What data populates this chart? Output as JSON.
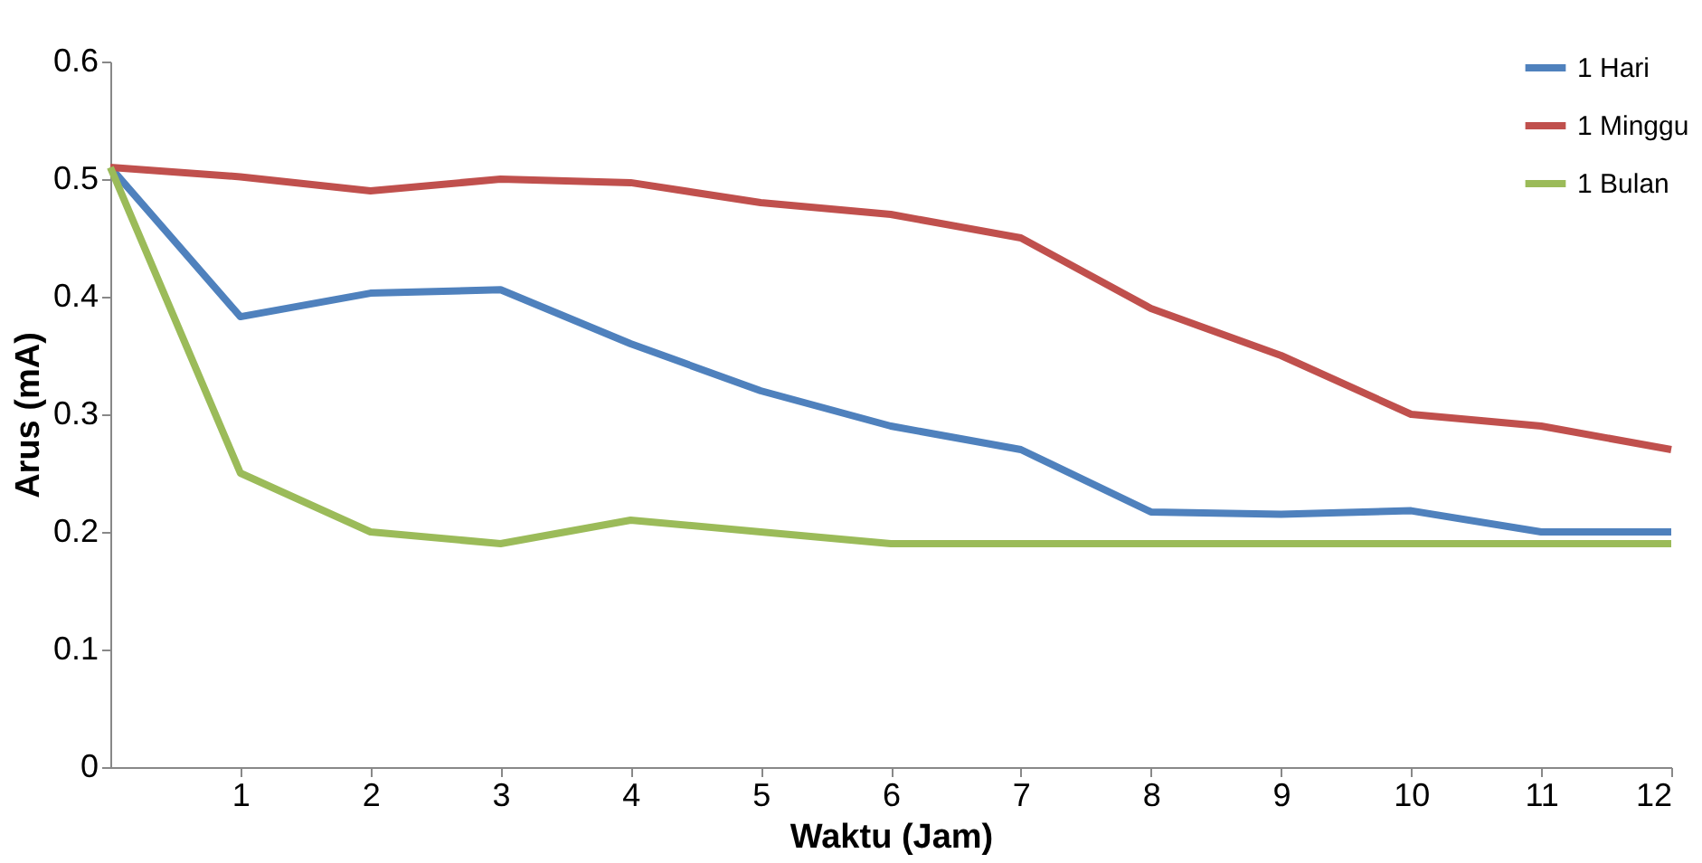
{
  "chart_data": {
    "type": "line",
    "xlabel": "Waktu (Jam)",
    "ylabel": "Arus (mA)",
    "x": [
      0,
      1,
      2,
      3,
      4,
      5,
      6,
      7,
      8,
      9,
      10,
      11,
      12
    ],
    "xlim": [
      0,
      12
    ],
    "xticks": [
      1,
      2,
      3,
      4,
      5,
      6,
      7,
      8,
      9,
      10,
      11,
      12
    ],
    "ylim": [
      0,
      0.6
    ],
    "yticks": [
      0,
      0.1,
      0.2,
      0.3,
      0.4,
      0.5,
      0.6
    ],
    "grid": false,
    "legend": "top right",
    "marker": "none",
    "line_style": "solid",
    "series": [
      {
        "name": "1 Hari",
        "color": "#4f81bd",
        "values": [
          0.51,
          0.383,
          0.403,
          0.406,
          0.36,
          0.32,
          0.29,
          0.27,
          0.217,
          0.215,
          0.218,
          0.2,
          0.2
        ]
      },
      {
        "name": "1 Minggu",
        "color": "#c0504d",
        "values": [
          0.51,
          0.502,
          0.49,
          0.5,
          0.497,
          0.48,
          0.47,
          0.45,
          0.39,
          0.35,
          0.3,
          0.29,
          0.27
        ]
      },
      {
        "name": "1 Bulan",
        "color": "#9bbb59",
        "values": [
          0.51,
          0.25,
          0.2,
          0.19,
          0.21,
          0.2,
          0.19,
          0.19,
          0.19,
          0.19,
          0.19,
          0.19,
          0.19
        ]
      }
    ]
  }
}
